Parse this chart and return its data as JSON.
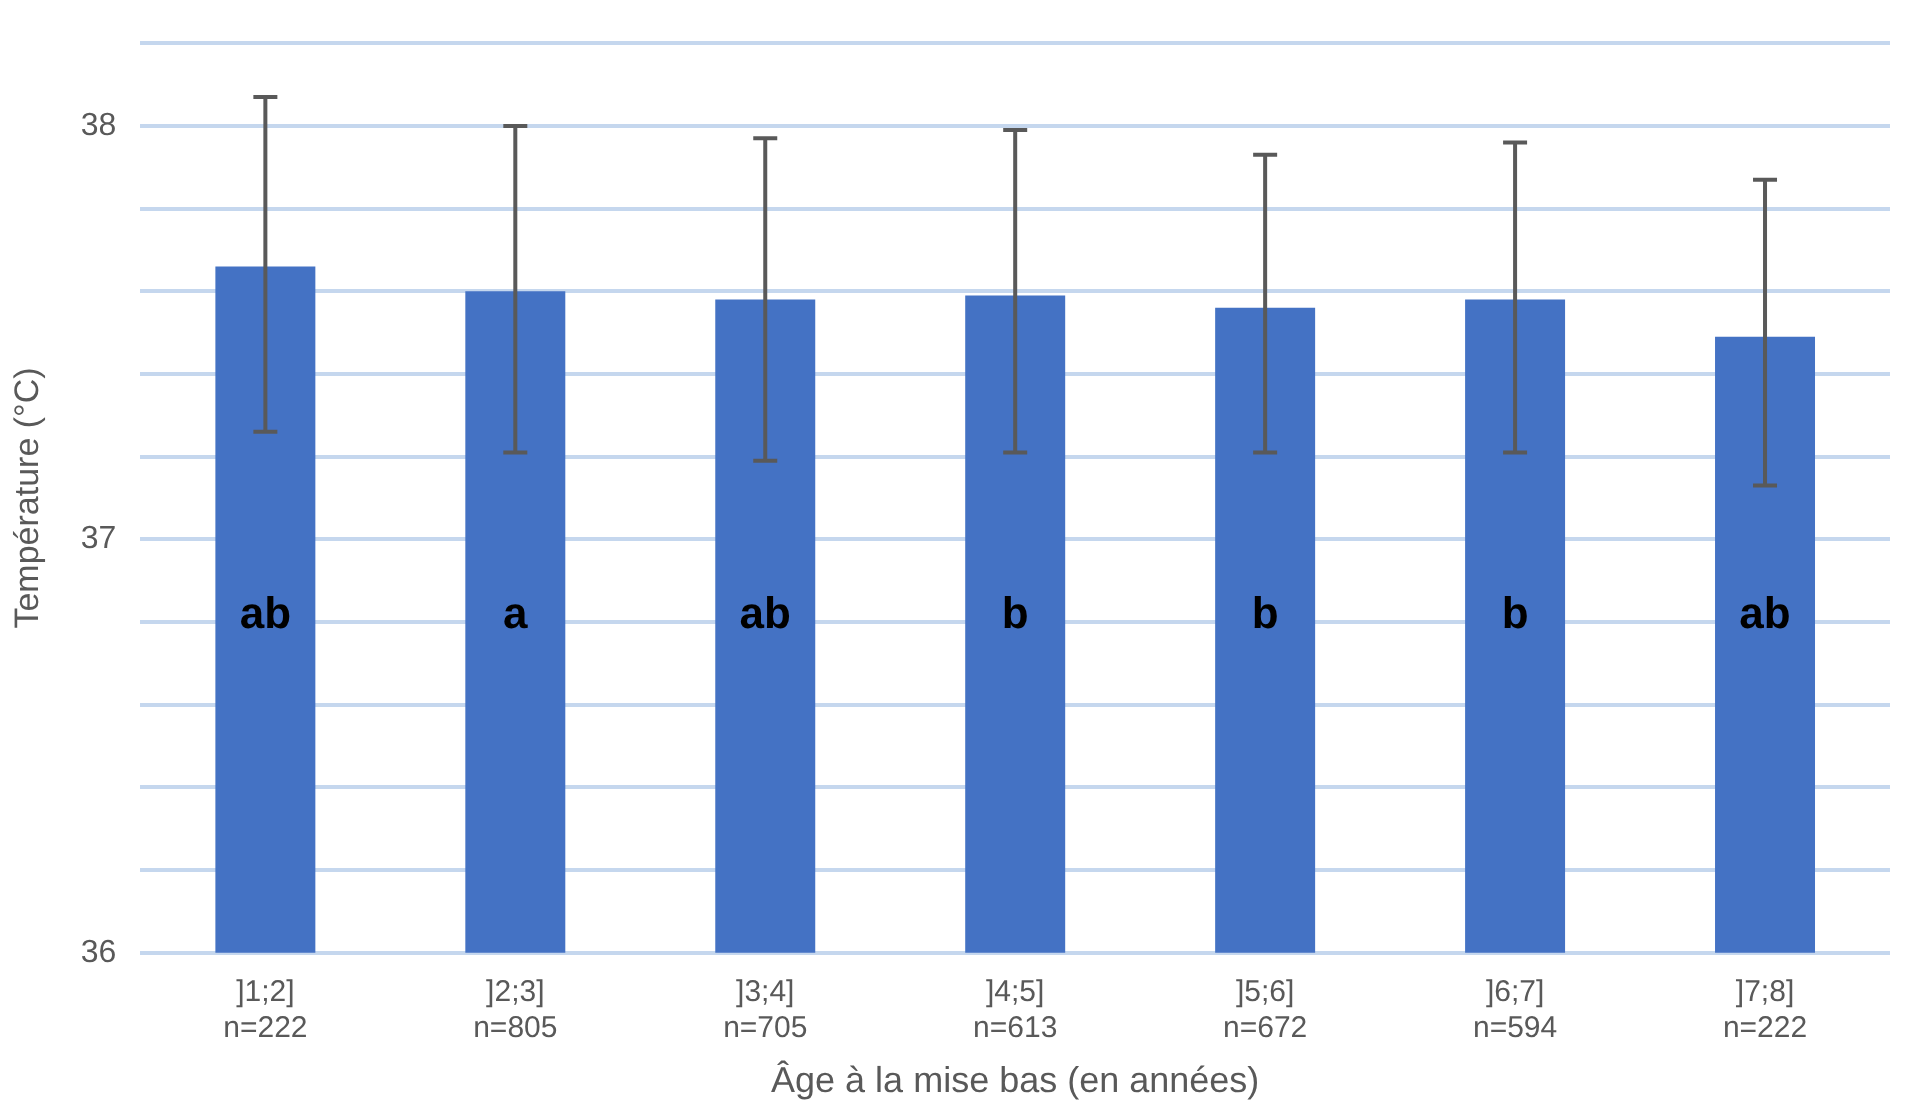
{
  "chart_data": {
    "type": "bar",
    "xlabel": "Âge à la mise bas (en années)",
    "ylabel": "Température (°C)",
    "categories": [
      "]1;2]\nn=222",
      "]2;3]\nn=805",
      "]3;4]\nn=705",
      "]4;5]\nn=613",
      "]5;6]\nn=672",
      "]6;7]\nn=594",
      "]7;8]\nn=222"
    ],
    "values": [
      37.66,
      37.6,
      37.58,
      37.59,
      37.56,
      37.58,
      37.49
    ],
    "errors": [
      [
        37.26,
        38.07
      ],
      [
        37.21,
        38.0
      ],
      [
        37.19,
        37.97
      ],
      [
        37.21,
        37.99
      ],
      [
        37.21,
        37.93
      ],
      [
        37.21,
        37.96
      ],
      [
        37.13,
        37.87
      ]
    ],
    "color": "#4472c4",
    "ylim": [
      36,
      38.2
    ],
    "yticks": [
      36,
      {
        "value": 36.2,
        "label": null
      },
      {
        "value": 36.4,
        "label": null
      },
      {
        "value": 36.6,
        "label": null
      },
      {
        "value": 36.8,
        "label": null
      },
      37,
      {
        "value": 37.2,
        "label": null
      },
      {
        "value": 37.4,
        "label": null
      },
      {
        "value": 37.6,
        "label": null
      },
      {
        "value": 37.8,
        "label": null
      },
      38,
      {
        "value": 38.2,
        "label": null
      }
    ],
    "grid": "y",
    "annotations": [
      "ab",
      "a",
      "ab",
      "b",
      "b",
      "b",
      "ab"
    ]
  }
}
